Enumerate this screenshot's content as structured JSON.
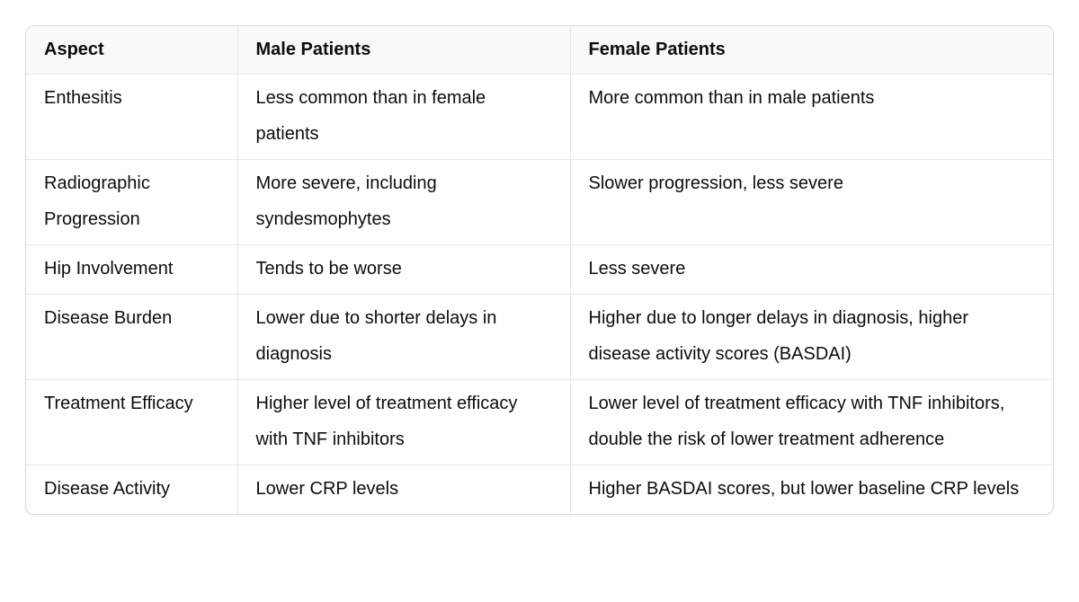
{
  "colors": {
    "text": "#0d0d0d",
    "header_background": "#f9f9f9",
    "inner_border": "#e6e6e6",
    "outer_border": "#d9d9d9",
    "background": "#ffffff"
  },
  "table": {
    "columns": [
      "Aspect",
      "Male Patients",
      "Female Patients"
    ],
    "rows": [
      {
        "cells": [
          "Enthesitis",
          "Less common than in female patients",
          "More common than in male patients"
        ]
      },
      {
        "cells": [
          "Radiographic Progression",
          "More severe, including syndesmophytes",
          "Slower progression, less severe"
        ]
      },
      {
        "cells": [
          "Hip Involvement",
          "Tends to be worse",
          "Less severe"
        ]
      },
      {
        "cells": [
          "Disease Burden",
          "Lower due to shorter delays in diagnosis",
          "Higher due to longer delays in diagnosis, higher disease activity scores (BASDAI)"
        ]
      },
      {
        "cells": [
          "Treatment Efficacy",
          "Higher level of treatment efficacy with TNF inhibitors",
          "Lower level of treatment efficacy with TNF inhibitors, double the risk of lower treatment adherence"
        ]
      },
      {
        "cells": [
          "Disease Activity",
          "Lower CRP levels",
          "Higher BASDAI scores, but lower baseline CRP levels"
        ]
      }
    ]
  }
}
